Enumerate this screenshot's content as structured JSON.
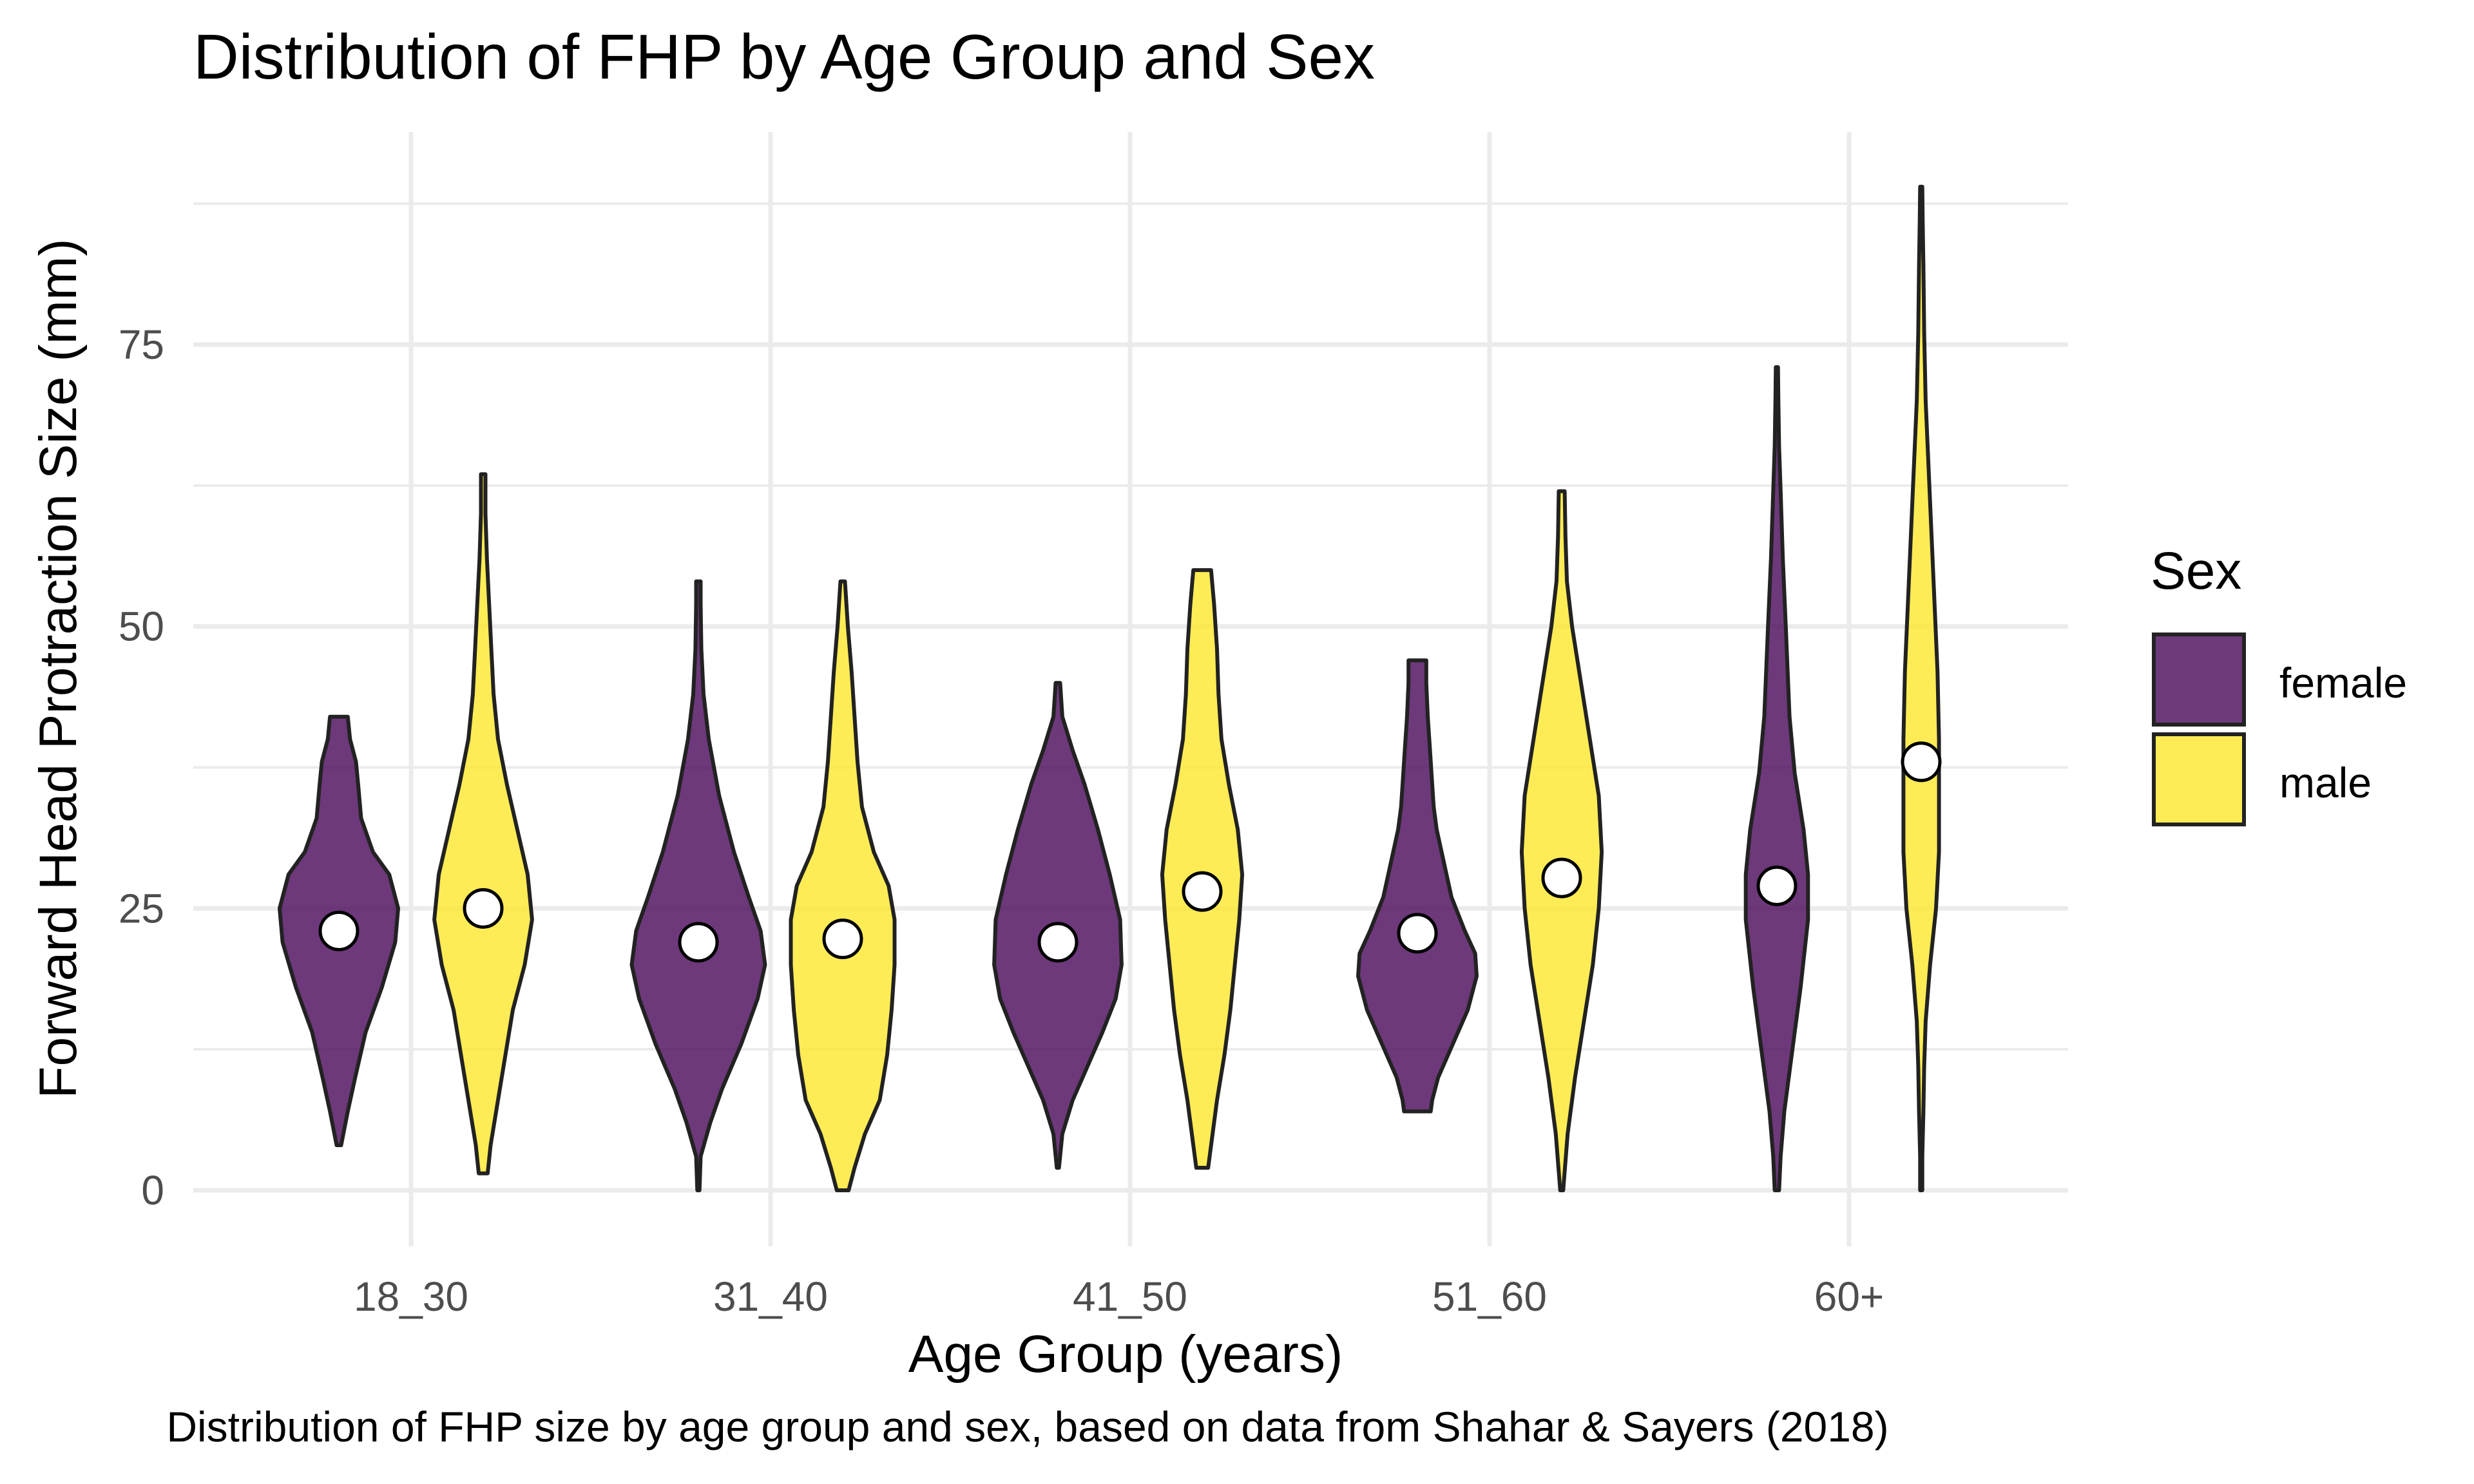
{
  "chart_data": {
    "type": "violin",
    "title": "Distribution of FHP by Age Group and Sex",
    "caption": "Distribution of FHP size by age group and sex, based on data from Shahar & Sayers (2018)",
    "xlabel": "Age Group (years)",
    "ylabel": "Forward Head Protraction Size (mm)",
    "categories": [
      "18_30",
      "31_40",
      "41_50",
      "51_60",
      "60+"
    ],
    "ylim": [
      -3,
      93
    ],
    "yticks": [
      0,
      25,
      50,
      75
    ],
    "grid": true,
    "legend": {
      "title": "Sex",
      "placement": "right",
      "entries": [
        "female",
        "male"
      ]
    },
    "colors": {
      "female": "#440154",
      "male": "#FDE725",
      "outline": "#222222"
    },
    "series": [
      {
        "name": "female",
        "mean": [
          23,
          22,
          22,
          22.8,
          27
        ],
        "violins": [
          [
            [
              4,
              0.03
            ],
            [
              7,
              0.12
            ],
            [
              10,
              0.22
            ],
            [
              14,
              0.36
            ],
            [
              18,
              0.58
            ],
            [
              22,
              0.76
            ],
            [
              25,
              0.8
            ],
            [
              28,
              0.68
            ],
            [
              30,
              0.46
            ],
            [
              33,
              0.3
            ],
            [
              36,
              0.26
            ],
            [
              38,
              0.23
            ],
            [
              40,
              0.15
            ],
            [
              42,
              0.12
            ]
          ],
          [
            [
              0,
              0.015
            ],
            [
              3,
              0.03
            ],
            [
              6,
              0.16
            ],
            [
              9,
              0.32
            ],
            [
              13,
              0.58
            ],
            [
              17,
              0.8
            ],
            [
              20,
              0.9
            ],
            [
              23,
              0.84
            ],
            [
              26,
              0.68
            ],
            [
              30,
              0.48
            ],
            [
              35,
              0.28
            ],
            [
              40,
              0.14
            ],
            [
              44,
              0.07
            ],
            [
              48,
              0.04
            ],
            [
              52,
              0.03
            ],
            [
              54,
              0.03
            ]
          ],
          [
            [
              2,
              0.015
            ],
            [
              5,
              0.06
            ],
            [
              8,
              0.2
            ],
            [
              11,
              0.4
            ],
            [
              14,
              0.6
            ],
            [
              17,
              0.78
            ],
            [
              20,
              0.86
            ],
            [
              24,
              0.84
            ],
            [
              28,
              0.7
            ],
            [
              32,
              0.54
            ],
            [
              36,
              0.36
            ],
            [
              39,
              0.2
            ],
            [
              42,
              0.06
            ],
            [
              45,
              0.03
            ]
          ],
          [
            [
              7,
              0.18
            ],
            [
              8,
              0.2
            ],
            [
              10,
              0.28
            ],
            [
              13,
              0.48
            ],
            [
              16,
              0.68
            ],
            [
              19,
              0.8
            ],
            [
              21,
              0.78
            ],
            [
              23,
              0.64
            ],
            [
              26,
              0.46
            ],
            [
              29,
              0.36
            ],
            [
              32,
              0.26
            ],
            [
              34,
              0.22
            ],
            [
              36,
              0.2
            ],
            [
              39,
              0.17
            ],
            [
              42,
              0.14
            ],
            [
              45,
              0.12
            ],
            [
              47,
              0.12
            ]
          ],
          [
            [
              0,
              0.03
            ],
            [
              3,
              0.05
            ],
            [
              7,
              0.1
            ],
            [
              12,
              0.2
            ],
            [
              18,
              0.32
            ],
            [
              24,
              0.42
            ],
            [
              28,
              0.42
            ],
            [
              32,
              0.36
            ],
            [
              37,
              0.24
            ],
            [
              42,
              0.17
            ],
            [
              50,
              0.12
            ],
            [
              56,
              0.08
            ],
            [
              62,
              0.05
            ],
            [
              66,
              0.03
            ],
            [
              70,
              0.02
            ],
            [
              73,
              0.015
            ]
          ]
        ]
      },
      {
        "name": "male",
        "mean": [
          25,
          22.3,
          26.5,
          27.7,
          38
        ],
        "violins": [
          [
            [
              1.5,
              0.06
            ],
            [
              4,
              0.1
            ],
            [
              8,
              0.2
            ],
            [
              12,
              0.3
            ],
            [
              16,
              0.4
            ],
            [
              20,
              0.56
            ],
            [
              24,
              0.66
            ],
            [
              28,
              0.6
            ],
            [
              32,
              0.46
            ],
            [
              36,
              0.32
            ],
            [
              40,
              0.2
            ],
            [
              44,
              0.14
            ],
            [
              48,
              0.11
            ],
            [
              52,
              0.08
            ],
            [
              56,
              0.05
            ],
            [
              60,
              0.03
            ],
            [
              63.5,
              0.03
            ]
          ],
          [
            [
              0,
              0.08
            ],
            [
              2,
              0.16
            ],
            [
              5,
              0.3
            ],
            [
              8,
              0.5
            ],
            [
              12,
              0.6
            ],
            [
              16,
              0.66
            ],
            [
              20,
              0.7
            ],
            [
              24,
              0.7
            ],
            [
              27,
              0.62
            ],
            [
              30,
              0.42
            ],
            [
              34,
              0.26
            ],
            [
              38,
              0.2
            ],
            [
              42,
              0.16
            ],
            [
              46,
              0.12
            ],
            [
              50,
              0.07
            ],
            [
              54,
              0.03
            ]
          ],
          [
            [
              2,
              0.08
            ],
            [
              5,
              0.14
            ],
            [
              8,
              0.2
            ],
            [
              12,
              0.3
            ],
            [
              16,
              0.38
            ],
            [
              20,
              0.44
            ],
            [
              24,
              0.5
            ],
            [
              28,
              0.54
            ],
            [
              32,
              0.48
            ],
            [
              36,
              0.36
            ],
            [
              40,
              0.26
            ],
            [
              44,
              0.22
            ],
            [
              48,
              0.2
            ],
            [
              52,
              0.16
            ],
            [
              55,
              0.12
            ]
          ],
          [
            [
              0,
              0.02
            ],
            [
              5,
              0.08
            ],
            [
              10,
              0.18
            ],
            [
              15,
              0.3
            ],
            [
              20,
              0.42
            ],
            [
              25,
              0.5
            ],
            [
              30,
              0.54
            ],
            [
              35,
              0.5
            ],
            [
              40,
              0.38
            ],
            [
              45,
              0.26
            ],
            [
              50,
              0.14
            ],
            [
              54,
              0.07
            ],
            [
              58,
              0.05
            ],
            [
              62,
              0.04
            ]
          ],
          [
            [
              0,
              0.015
            ],
            [
              3,
              0.015
            ],
            [
              7,
              0.03
            ],
            [
              11,
              0.04
            ],
            [
              15,
              0.06
            ],
            [
              20,
              0.12
            ],
            [
              25,
              0.2
            ],
            [
              30,
              0.24
            ],
            [
              35,
              0.24
            ],
            [
              40,
              0.24
            ],
            [
              46,
              0.22
            ],
            [
              52,
              0.18
            ],
            [
              58,
              0.14
            ],
            [
              64,
              0.1
            ],
            [
              70,
              0.06
            ],
            [
              76,
              0.04
            ],
            [
              82,
              0.03
            ],
            [
              86,
              0.02
            ],
            [
              89,
              0.015
            ]
          ]
        ]
      }
    ]
  }
}
